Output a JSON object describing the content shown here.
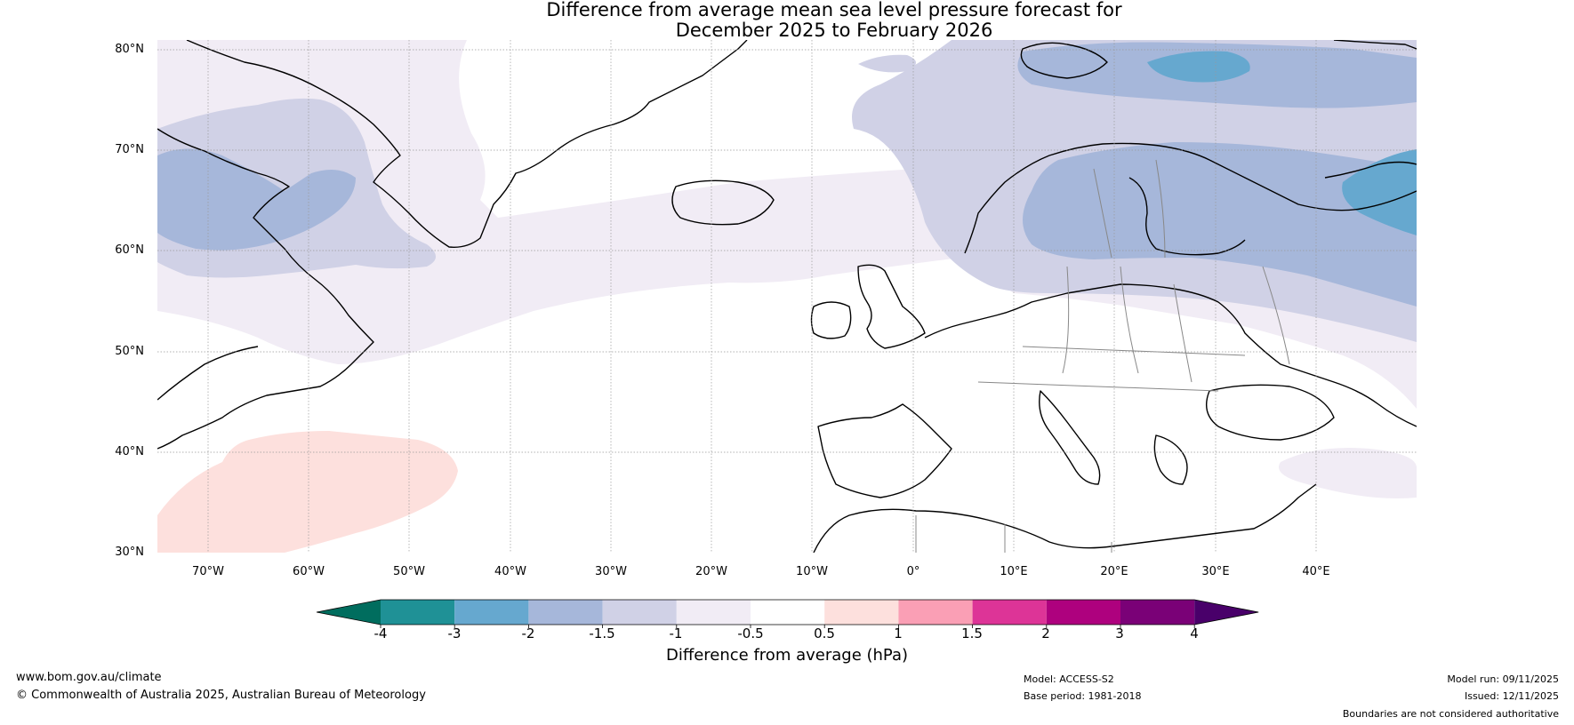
{
  "title": {
    "line1": "Difference from average mean sea level pressure forecast for",
    "line2": "December 2025 to February 2026"
  },
  "map": {
    "lat_labels": [
      "80°N",
      "70°N",
      "60°N",
      "50°N",
      "40°N",
      "30°N"
    ],
    "lon_labels": [
      "70°W",
      "60°W",
      "50°W",
      "40°W",
      "30°W",
      "20°W",
      "10°W",
      "0°",
      "10°E",
      "20°E",
      "30°E",
      "40°E"
    ],
    "lat_range": [
      30,
      80
    ],
    "lon_range": [
      -75,
      50
    ],
    "features": [
      {
        "name": "land-greenland",
        "kind": "land"
      },
      {
        "name": "land-north-america",
        "kind": "land"
      },
      {
        "name": "land-iceland",
        "kind": "land"
      },
      {
        "name": "land-british-isles",
        "kind": "land"
      },
      {
        "name": "land-scandinavia",
        "kind": "land"
      },
      {
        "name": "land-europe",
        "kind": "land"
      },
      {
        "name": "land-north-africa",
        "kind": "land"
      },
      {
        "name": "land-svalbard",
        "kind": "land"
      }
    ]
  },
  "colorbar": {
    "title": "Difference from average (hPa)",
    "labels": [
      "-4",
      "-3",
      "-2",
      "-1.5",
      "-1",
      "-0.5",
      "0.5",
      "1",
      "1.5",
      "2",
      "3",
      "4"
    ],
    "colors": {
      "below_min": "#006d5e",
      "bins": [
        "#1f9196",
        "#66a8cf",
        "#a6b7da",
        "#d0d1e6",
        "#f1ecf5",
        "#ffffff",
        "#fde0dd",
        "#fa9fb5",
        "#dd3497",
        "#ae017e",
        "#7a0177"
      ],
      "above_max": "#49006a"
    }
  },
  "footer": {
    "website": "www.bom.gov.au/climate",
    "copyright": "© Commonwealth of Australia 2025, Australian Bureau of Meteorology",
    "model": "Model: ACCESS-S2",
    "base_period": "Base period: 1981-2018",
    "model_run": "Model run: 09/11/2025",
    "issued": "Issued: 12/11/2025",
    "disclaimer": "Boundaries are not considered authoritative"
  }
}
